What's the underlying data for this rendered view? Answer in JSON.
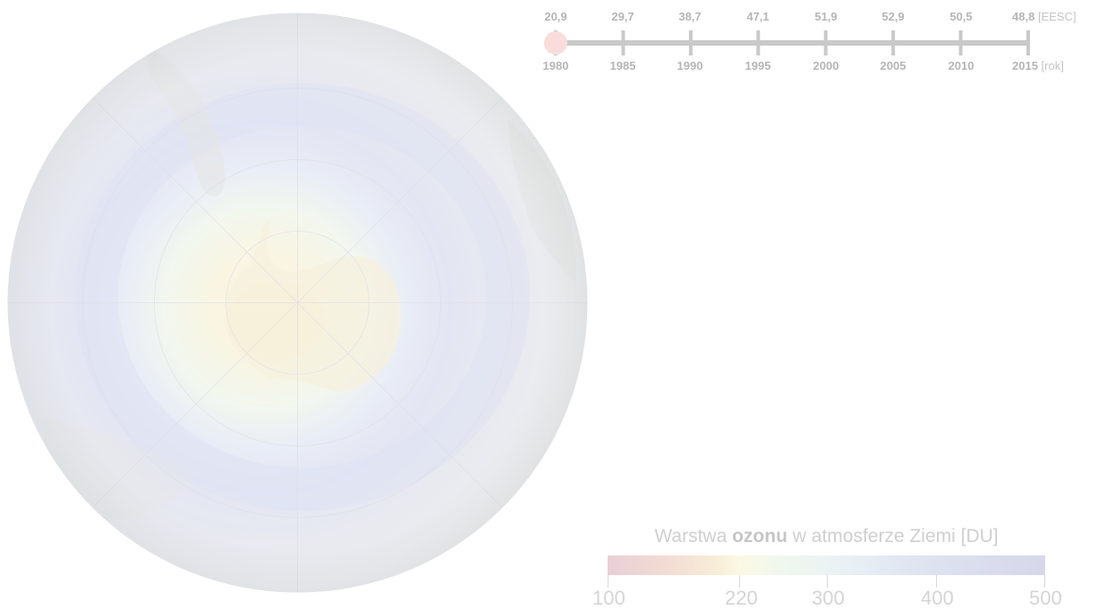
{
  "timeline": {
    "values": [
      "20,9",
      "29,7",
      "38,7",
      "47,1",
      "51,9",
      "52,9",
      "50,5",
      "48,8"
    ],
    "values_unit": "[EESC]",
    "years": [
      "1980",
      "1985",
      "1990",
      "1995",
      "2000",
      "2005",
      "2010",
      "2015"
    ],
    "years_unit": "[rok]",
    "selected_index": 0,
    "track_color": "#c9c9c9",
    "marker_color": "#fbdcdc"
  },
  "legend": {
    "title_prefix": "Warstwa",
    "title_bold": "ozonu",
    "title_suffix": "w atmosferze Ziemi [DU]",
    "labels": [
      "100",
      "220",
      "300",
      "400",
      "500"
    ]
  },
  "colors": {
    "ozone_low": "#e9cfd6",
    "ozone_mid": "#fbf8e4",
    "ozone_high": "#d6d8ea",
    "globe_base": "#eeeeef",
    "text_grey": "#b5b5b5"
  },
  "icons": {
    "globe": "antarctica-globe-icon",
    "marker": "timeline-marker-icon"
  }
}
